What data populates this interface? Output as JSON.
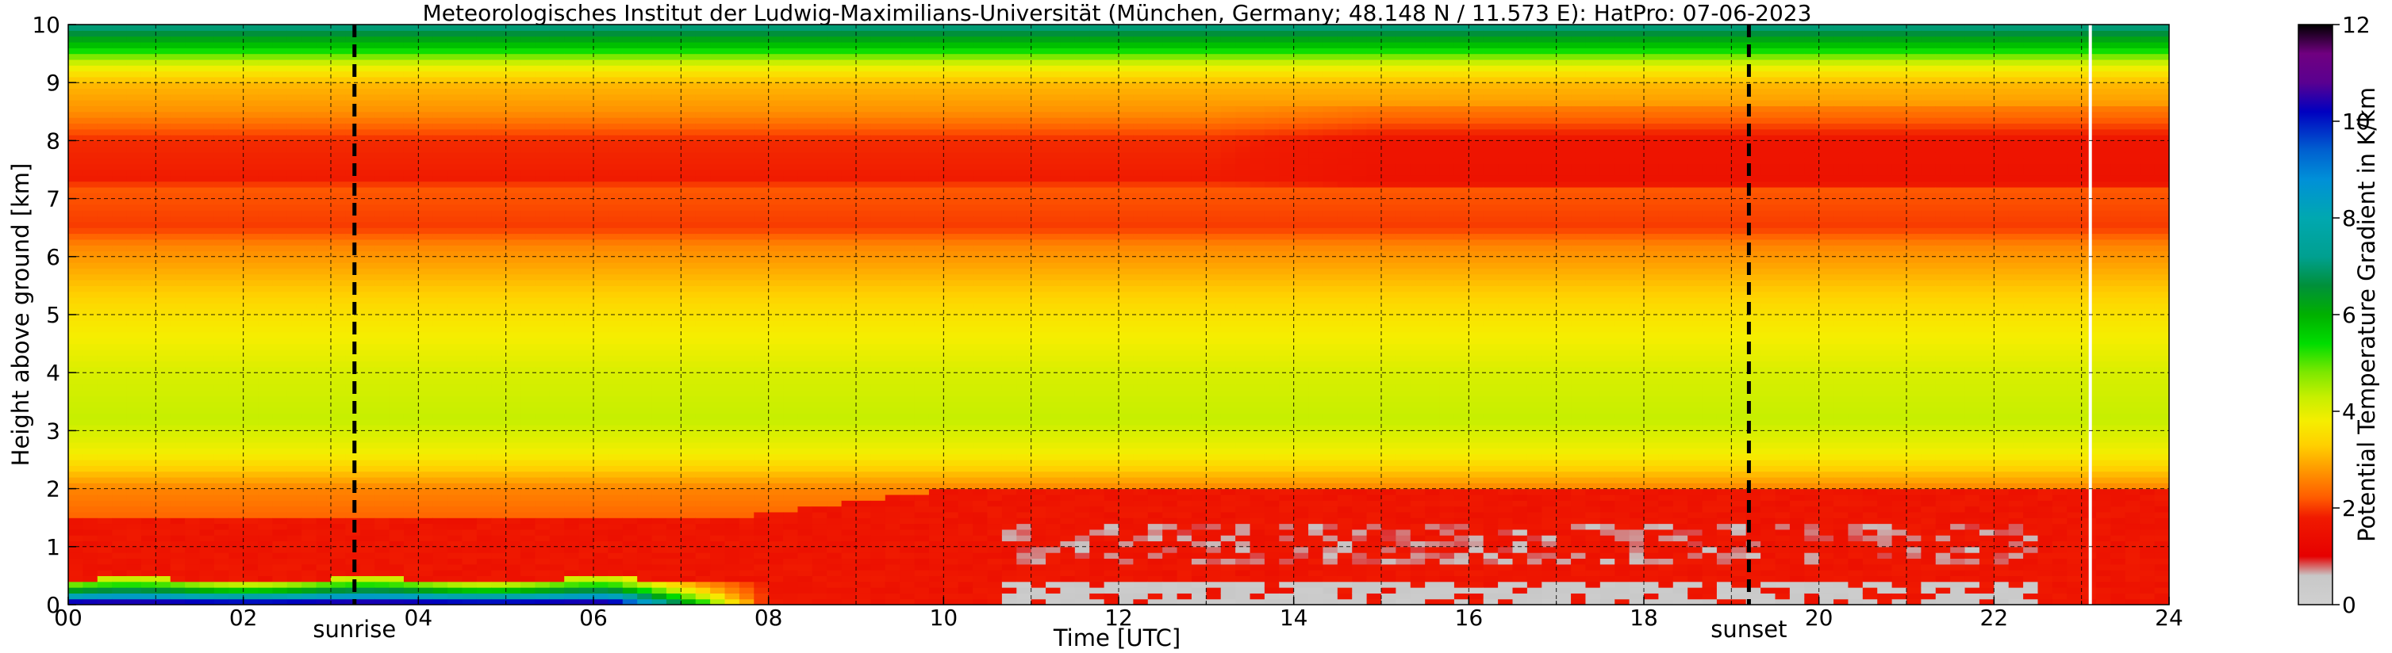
{
  "colors": {
    "sunrise_sunset_line": "#000000",
    "grid": "#000000",
    "gap_line": "#ffffff"
  },
  "chart_data": {
    "type": "heatmap",
    "title": "Meteorologisches Institut der Ludwig-Maximilians-Universität (München, Germany; 48.148 N / 11.573 E):    HatPro: 07-06-2023",
    "xlabel": "Time [UTC]",
    "ylabel": "Height above ground [km]",
    "xlim": [
      0,
      24
    ],
    "ylim": [
      0,
      10
    ],
    "x_ticks": [
      0,
      2,
      4,
      6,
      8,
      10,
      12,
      14,
      16,
      18,
      20,
      22,
      24
    ],
    "x_tick_labels": [
      "00",
      "02",
      "04",
      "06",
      "08",
      "10",
      "12",
      "14",
      "16",
      "18",
      "20",
      "22",
      "24"
    ],
    "x_minor_step": 1,
    "y_ticks": [
      0,
      1,
      2,
      3,
      4,
      5,
      6,
      7,
      8,
      9,
      10
    ],
    "y_tick_labels": [
      "0",
      "1",
      "2",
      "3",
      "4",
      "5",
      "6",
      "7",
      "8",
      "9",
      "10"
    ],
    "grid": true,
    "markers": [
      {
        "label": "sunrise",
        "x": 3.27
      },
      {
        "label": "sunset",
        "x": 19.2
      }
    ],
    "data_gap_x": 23.1,
    "colorbar": {
      "label": "Potential Temperature Gradient in K/km",
      "range": [
        0,
        12
      ],
      "ticks": [
        0,
        2,
        4,
        6,
        8,
        10,
        12
      ],
      "tick_labels": [
        "0",
        "2",
        "4",
        "6",
        "8",
        "10",
        "12"
      ],
      "stops": [
        {
          "v": 0.0,
          "c": "#d0d0d0"
        },
        {
          "v": 0.6,
          "c": "#c8c8c8"
        },
        {
          "v": 1.0,
          "c": "#e60000"
        },
        {
          "v": 1.8,
          "c": "#f01a00"
        },
        {
          "v": 2.2,
          "c": "#ff5a00"
        },
        {
          "v": 2.8,
          "c": "#ff9a00"
        },
        {
          "v": 3.3,
          "c": "#ffd000"
        },
        {
          "v": 3.8,
          "c": "#f5ee00"
        },
        {
          "v": 4.3,
          "c": "#c6ef00"
        },
        {
          "v": 4.8,
          "c": "#7ee800"
        },
        {
          "v": 5.4,
          "c": "#00dd00"
        },
        {
          "v": 6.0,
          "c": "#00b000"
        },
        {
          "v": 6.6,
          "c": "#00903a"
        },
        {
          "v": 7.2,
          "c": "#00a090"
        },
        {
          "v": 8.0,
          "c": "#00a8b0"
        },
        {
          "v": 8.8,
          "c": "#0090d8"
        },
        {
          "v": 9.4,
          "c": "#0060d0"
        },
        {
          "v": 10.2,
          "c": "#0000c0"
        },
        {
          "v": 10.8,
          "c": "#5a0090"
        },
        {
          "v": 11.4,
          "c": "#700080"
        },
        {
          "v": 12.0,
          "c": "#000000"
        }
      ]
    },
    "background_profile_km": [
      {
        "h": 0.0,
        "v": 2.0
      },
      {
        "h": 1.0,
        "v": 2.0
      },
      {
        "h": 2.0,
        "v": 2.6
      },
      {
        "h": 2.6,
        "v": 3.8
      },
      {
        "h": 3.2,
        "v": 4.3
      },
      {
        "h": 4.0,
        "v": 4.1
      },
      {
        "h": 5.0,
        "v": 3.6
      },
      {
        "h": 5.6,
        "v": 3.1
      },
      {
        "h": 6.2,
        "v": 2.6
      },
      {
        "h": 6.5,
        "v": 2.0
      },
      {
        "h": 7.2,
        "v": 2.2
      },
      {
        "h": 7.3,
        "v": 1.8
      },
      {
        "h": 8.0,
        "v": 1.9
      },
      {
        "h": 8.5,
        "v": 2.7
      },
      {
        "h": 9.0,
        "v": 3.1
      },
      {
        "h": 9.3,
        "v": 4.0
      },
      {
        "h": 9.6,
        "v": 5.6
      },
      {
        "h": 9.8,
        "v": 6.4
      },
      {
        "h": 10.0,
        "v": 7.2
      }
    ],
    "features": [
      {
        "name": "surface-inversion-night",
        "x": [
          0,
          7.5
        ],
        "h": [
          0,
          0.5
        ],
        "v": [
          4.5,
          11
        ]
      },
      {
        "name": "red-layer-night",
        "x": [
          0,
          8
        ],
        "h": [
          0.5,
          1.6
        ],
        "v": [
          1.5,
          1.9
        ]
      },
      {
        "name": "red-layer-day",
        "x": [
          8,
          24
        ],
        "h": [
          0.1,
          2.0
        ],
        "v": [
          1.1,
          1.6
        ]
      },
      {
        "name": "neutral-daytime",
        "x": [
          10.6,
          22.5
        ],
        "h": [
          0,
          0.35
        ],
        "v": [
          0.3,
          0.5
        ]
      },
      {
        "name": "neutral-patches",
        "x": [
          10.6,
          22.5
        ],
        "h": [
          0.7,
          1.4
        ],
        "v": [
          0.5,
          0.9
        ]
      }
    ]
  }
}
